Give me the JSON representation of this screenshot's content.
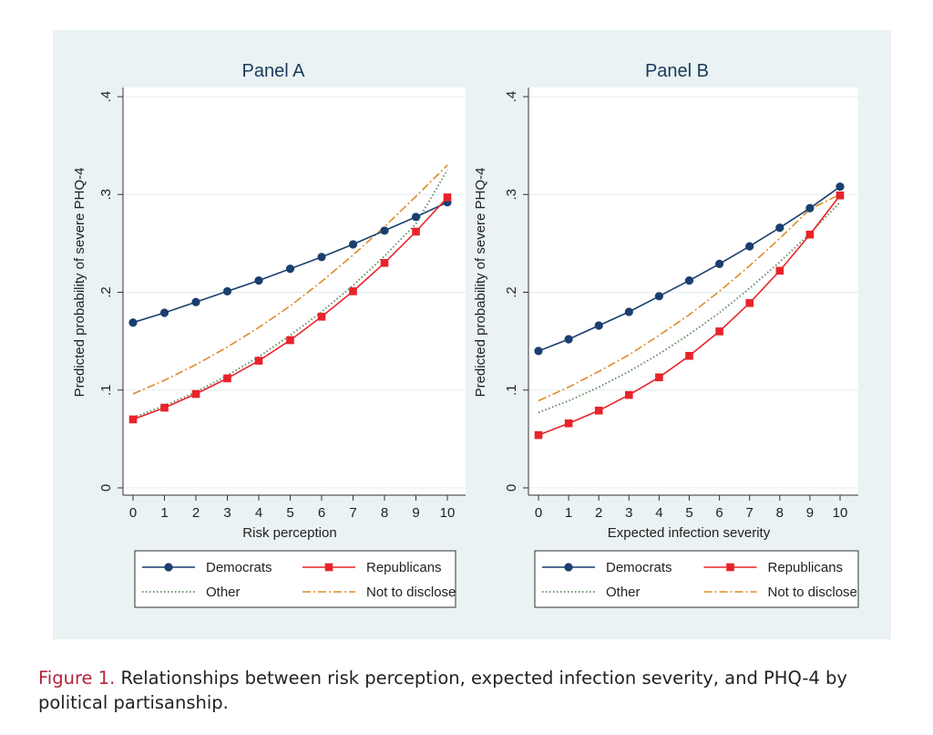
{
  "caption": {
    "label": "Figure 1.",
    "text": "Relationships between risk perception, expected infection severity, and PHQ-4 by political partisanship."
  },
  "colors": {
    "democrats": "#1a3f6e",
    "republicans": "#e8232a",
    "other": "#5a8a5a",
    "not_to_disclose": "#e08a2a",
    "panel_bg": "#eaf2f3",
    "plot_bg": "#ffffff"
  },
  "chart_data": [
    {
      "type": "line",
      "title": "Panel A",
      "xlabel": "Risk perception",
      "ylabel": "Predicted probability of severe PHQ-4",
      "xlim": [
        0,
        10
      ],
      "ylim": [
        0,
        0.4
      ],
      "x": [
        0,
        1,
        2,
        3,
        4,
        5,
        6,
        7,
        8,
        9,
        10
      ],
      "x_ticks": [
        "0",
        "1",
        "2",
        "3",
        "4",
        "5",
        "6",
        "7",
        "8",
        "9",
        "10"
      ],
      "y_ticks": [
        0,
        0.1,
        0.2,
        0.3,
        0.4
      ],
      "y_tick_labels": [
        "0",
        ".1",
        ".2",
        ".3",
        ".4"
      ],
      "grid": true,
      "legend_position": "bottom",
      "series": [
        {
          "name": "Democrats",
          "style": "solid-circle",
          "values": [
            0.169,
            0.179,
            0.19,
            0.201,
            0.212,
            0.224,
            0.236,
            0.249,
            0.263,
            0.277,
            0.292
          ]
        },
        {
          "name": "Republicans",
          "style": "solid-square",
          "values": [
            0.07,
            0.082,
            0.096,
            0.112,
            0.13,
            0.151,
            0.175,
            0.201,
            0.23,
            0.262,
            0.297
          ]
        },
        {
          "name": "Other",
          "style": "dotted",
          "values": [
            0.072,
            0.084,
            0.098,
            0.115,
            0.134,
            0.156,
            0.18,
            0.207,
            0.237,
            0.27,
            0.325
          ]
        },
        {
          "name": "Not to disclose",
          "style": "dashdot",
          "values": [
            0.096,
            0.11,
            0.126,
            0.144,
            0.164,
            0.186,
            0.211,
            0.238,
            0.267,
            0.298,
            0.33
          ]
        }
      ]
    },
    {
      "type": "line",
      "title": "Panel B",
      "xlabel": "Expected infection severity",
      "ylabel": "Predicted probability of severe PHQ-4",
      "xlim": [
        0,
        10
      ],
      "ylim": [
        0,
        0.4
      ],
      "x": [
        0,
        1,
        2,
        3,
        4,
        5,
        6,
        7,
        8,
        9,
        10
      ],
      "x_ticks": [
        "0",
        "1",
        "2",
        "3",
        "4",
        "5",
        "6",
        "7",
        "8",
        "9",
        "10"
      ],
      "y_ticks": [
        0,
        0.1,
        0.2,
        0.3,
        0.4
      ],
      "y_tick_labels": [
        "0",
        ".1",
        ".2",
        ".3",
        ".4"
      ],
      "grid": true,
      "legend_position": "bottom",
      "series": [
        {
          "name": "Democrats",
          "style": "solid-circle",
          "values": [
            0.14,
            0.152,
            0.166,
            0.18,
            0.196,
            0.212,
            0.229,
            0.247,
            0.266,
            0.286,
            0.308
          ]
        },
        {
          "name": "Republicans",
          "style": "solid-square",
          "values": [
            0.054,
            0.066,
            0.079,
            0.095,
            0.113,
            0.135,
            0.16,
            0.189,
            0.222,
            0.259,
            0.299
          ]
        },
        {
          "name": "Other",
          "style": "dotted",
          "values": [
            0.077,
            0.089,
            0.103,
            0.119,
            0.137,
            0.157,
            0.179,
            0.204,
            0.231,
            0.26,
            0.292
          ]
        },
        {
          "name": "Not to disclose",
          "style": "dashdot",
          "values": [
            0.089,
            0.103,
            0.119,
            0.136,
            0.156,
            0.177,
            0.201,
            0.227,
            0.255,
            0.285,
            0.3
          ]
        }
      ]
    }
  ]
}
